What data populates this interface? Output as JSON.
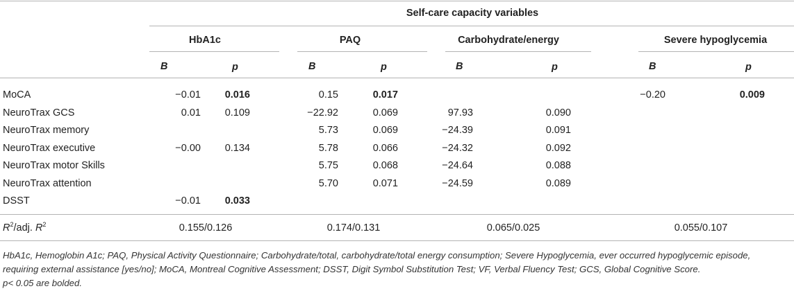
{
  "table": {
    "title": "Self-care capacity variables",
    "groups": [
      "HbA1c",
      "PAQ",
      "Carbohydrate/energy",
      "Severe hypoglycemia"
    ],
    "subheaders": [
      "B",
      "p",
      "B",
      "p",
      "B",
      "p",
      "B",
      "p"
    ],
    "rows": [
      {
        "label": "MoCA",
        "cells": [
          "−0.01",
          "0.016",
          "0.15",
          "0.017",
          "",
          "",
          "−0.20",
          "0.009"
        ],
        "bold": [
          false,
          true,
          false,
          true,
          false,
          false,
          false,
          true
        ]
      },
      {
        "label": "NeuroTrax GCS",
        "cells": [
          "0.01",
          "0.109",
          "−22.92",
          "0.069",
          "97.93",
          "0.090",
          "",
          ""
        ],
        "bold": [
          false,
          false,
          false,
          false,
          false,
          false,
          false,
          false
        ]
      },
      {
        "label": "NeuroTrax memory",
        "cells": [
          "",
          "",
          "5.73",
          "0.069",
          "−24.39",
          "0.091",
          "",
          ""
        ],
        "bold": [
          false,
          false,
          false,
          false,
          false,
          false,
          false,
          false
        ]
      },
      {
        "label": "NeuroTrax executive",
        "cells": [
          "−0.00",
          "0.134",
          "5.78",
          "0.066",
          "−24.32",
          "0.092",
          "",
          ""
        ],
        "bold": [
          false,
          false,
          false,
          false,
          false,
          false,
          false,
          false
        ]
      },
      {
        "label": "NeuroTrax motor Skills",
        "cells": [
          "",
          "",
          "5.75",
          "0.068",
          "−24.64",
          "0.088",
          "",
          ""
        ],
        "bold": [
          false,
          false,
          false,
          false,
          false,
          false,
          false,
          false
        ]
      },
      {
        "label": "NeuroTrax attention",
        "cells": [
          "",
          "",
          "5.70",
          "0.071",
          "−24.59",
          "0.089",
          "",
          ""
        ],
        "bold": [
          false,
          false,
          false,
          false,
          false,
          false,
          false,
          false
        ]
      },
      {
        "label": "DSST",
        "cells": [
          "−0.01",
          "0.033",
          "",
          "",
          "",
          "",
          "",
          ""
        ],
        "bold": [
          false,
          true,
          false,
          false,
          false,
          false,
          false,
          false
        ]
      }
    ],
    "r2": {
      "label_r": "R",
      "label_sup1": "2",
      "label_mid": "/adj. ",
      "label_r2": "R",
      "label_sup2": "2",
      "values": [
        "0.155/0.126",
        "0.174/0.131",
        "0.065/0.025",
        "0.055/0.107"
      ]
    }
  },
  "footnotes": [
    "HbA1c, Hemoglobin A1c; PAQ, Physical Activity Questionnaire; Carbohydrate/total, carbohydrate/total energy consumption; Severe Hypoglycemia, ever occurred hypoglycemic episode,",
    "requiring external assistance [yes/no]; MoCA, Montreal Cognitive Assessment; DSST, Digit Symbol Substitution Test; VF, Verbal Fluency Test; GCS, Global Cognitive Score.",
    "p< 0.05 are bolded."
  ]
}
